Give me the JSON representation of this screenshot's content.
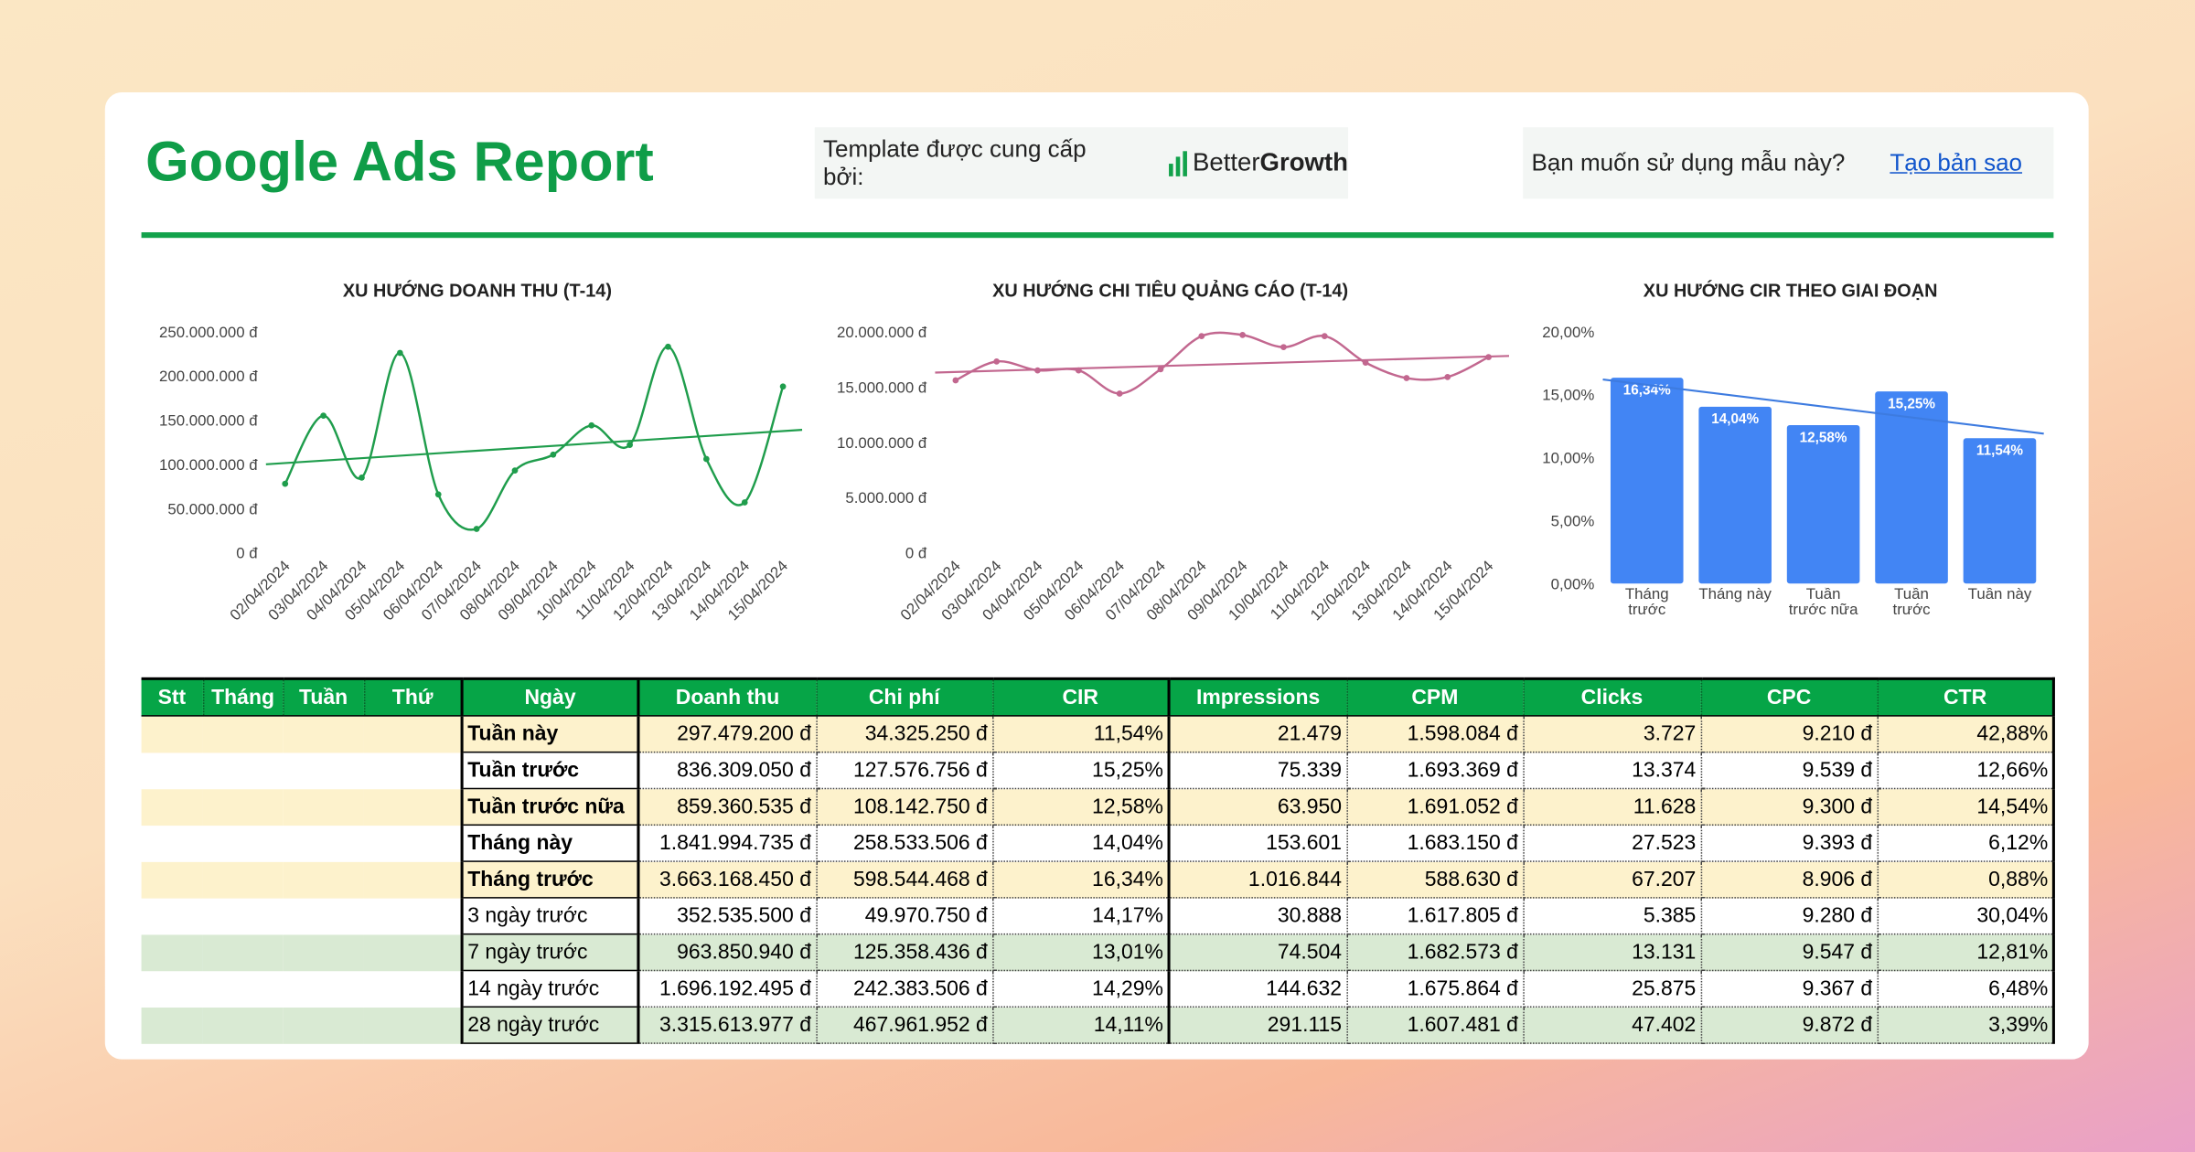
{
  "header": {
    "title": "Google Ads Report",
    "provided_by": "Template được cung cấp bởi:",
    "brand": [
      "Better",
      "Growth"
    ],
    "question": "Bạn muốn sử dụng mẫu này?",
    "link": "Tạo bản sao"
  },
  "chart_data": [
    {
      "type": "line",
      "title": "XU HƯỚNG DOANH THU (T-14)",
      "color": "#1f9d4c",
      "x": [
        "02/04/2024",
        "03/04/2024",
        "04/04/2024",
        "05/04/2024",
        "06/04/2024",
        "07/04/2024",
        "08/04/2024",
        "09/04/2024",
        "10/04/2024",
        "11/04/2024",
        "12/04/2024",
        "13/04/2024",
        "14/04/2024",
        "15/04/2024"
      ],
      "values": [
        78000000,
        155000000,
        85000000,
        226000000,
        66000000,
        27000000,
        93000000,
        111000000,
        144000000,
        122000000,
        233000000,
        106000000,
        57000000,
        188000000
      ],
      "trend": [
        100000000,
        139000000
      ],
      "ylim": [
        0,
        250000000
      ],
      "yticks": [
        {
          "value": 0,
          "label": "0 đ"
        },
        {
          "value": 50000000,
          "label": "50.000.000 đ"
        },
        {
          "value": 100000000,
          "label": "100.000.000 đ"
        },
        {
          "value": 150000000,
          "label": "150.000.000 đ"
        },
        {
          "value": 200000000,
          "label": "200.000.000 đ"
        },
        {
          "value": 250000000,
          "label": "250.000.000 đ"
        }
      ]
    },
    {
      "type": "line",
      "title": "XU HƯỚNG CHI TIÊU QUẢNG CÁO (T-14)",
      "color": "#c2678f",
      "x": [
        "02/04/2024",
        "03/04/2024",
        "04/04/2024",
        "05/04/2024",
        "06/04/2024",
        "07/04/2024",
        "08/04/2024",
        "09/04/2024",
        "10/04/2024",
        "11/04/2024",
        "12/04/2024",
        "13/04/2024",
        "14/04/2024",
        "15/04/2024"
      ],
      "values": [
        15600000,
        17300000,
        16500000,
        16500000,
        14400000,
        16600000,
        19600000,
        19700000,
        18600000,
        19600000,
        17200000,
        15800000,
        15900000,
        17700000
      ],
      "trend": [
        16300000,
        17800000
      ],
      "ylim": [
        0,
        20000000
      ],
      "yticks": [
        {
          "value": 0,
          "label": "0 đ"
        },
        {
          "value": 5000000,
          "label": "5.000.000 đ"
        },
        {
          "value": 10000000,
          "label": "10.000.000 đ"
        },
        {
          "value": 15000000,
          "label": "15.000.000 đ"
        },
        {
          "value": 20000000,
          "label": "20.000.000 đ"
        }
      ]
    },
    {
      "type": "bar",
      "title": "XU HƯỚNG CIR THEO GIAI ĐOẠN",
      "color": "#4285f4",
      "trend_color": "#3d7be0",
      "categories": [
        "Tháng trước",
        "Tháng này",
        "Tuần trước nữa",
        "Tuần trước",
        "Tuần này"
      ],
      "values": [
        16.34,
        14.04,
        12.58,
        15.25,
        11.54
      ],
      "value_labels": [
        "16,34%",
        "14,04%",
        "12,58%",
        "15,25%",
        "11,54%"
      ],
      "trend": [
        16.2,
        11.9
      ],
      "ylim": [
        0,
        20
      ],
      "yticks": [
        {
          "value": 0,
          "label": "0,00%"
        },
        {
          "value": 5,
          "label": "5,00%"
        },
        {
          "value": 10,
          "label": "10,00%"
        },
        {
          "value": 15,
          "label": "15,00%"
        },
        {
          "value": 20,
          "label": "20,00%"
        }
      ]
    }
  ],
  "table": {
    "columns": [
      "Stt",
      "Tháng",
      "Tuần",
      "Thứ",
      "Ngày",
      "Doanh thu",
      "Chi phí",
      "CIR",
      "Impressions",
      "CPM",
      "Clicks",
      "CPC",
      "CTR"
    ],
    "rows": [
      {
        "label": "Tuần này",
        "cells": [
          "297.479.200 đ",
          "34.325.250 đ",
          "11,54%",
          "21.479",
          "1.598.084 đ",
          "3.727",
          "9.210 đ",
          "42,88%"
        ]
      },
      {
        "label": "Tuần trước",
        "cells": [
          "836.309.050 đ",
          "127.576.756 đ",
          "15,25%",
          "75.339",
          "1.693.369 đ",
          "13.374",
          "9.539 đ",
          "12,66%"
        ]
      },
      {
        "label": "Tuần trước nữa",
        "cells": [
          "859.360.535 đ",
          "108.142.750 đ",
          "12,58%",
          "63.950",
          "1.691.052 đ",
          "11.628",
          "9.300 đ",
          "14,54%"
        ]
      },
      {
        "label": "Tháng này",
        "cells": [
          "1.841.994.735 đ",
          "258.533.506 đ",
          "14,04%",
          "153.601",
          "1.683.150 đ",
          "27.523",
          "9.393 đ",
          "6,12%"
        ]
      },
      {
        "label": "Tháng trước",
        "cells": [
          "3.663.168.450 đ",
          "598.544.468 đ",
          "16,34%",
          "1.016.844",
          "588.630 đ",
          "67.207",
          "8.906 đ",
          "0,88%"
        ]
      },
      {
        "label": "3 ngày trước",
        "cells": [
          "352.535.500 đ",
          "49.970.750 đ",
          "14,17%",
          "30.888",
          "1.617.805 đ",
          "5.385",
          "9.280 đ",
          "30,04%"
        ]
      },
      {
        "label": "7 ngày trước",
        "cells": [
          "963.850.940 đ",
          "125.358.436 đ",
          "13,01%",
          "74.504",
          "1.682.573 đ",
          "13.131",
          "9.547 đ",
          "12,81%"
        ]
      },
      {
        "label": "14 ngày trước",
        "cells": [
          "1.696.192.495 đ",
          "242.383.506 đ",
          "14,29%",
          "144.632",
          "1.675.864 đ",
          "25.875",
          "9.367 đ",
          "6,48%"
        ]
      },
      {
        "label": "28 ngày trước",
        "cells": [
          "3.315.613.977 đ",
          "467.961.952 đ",
          "14,11%",
          "291.115",
          "1.607.481 đ",
          "47.402",
          "9.872 đ",
          "3,39%"
        ]
      }
    ]
  }
}
